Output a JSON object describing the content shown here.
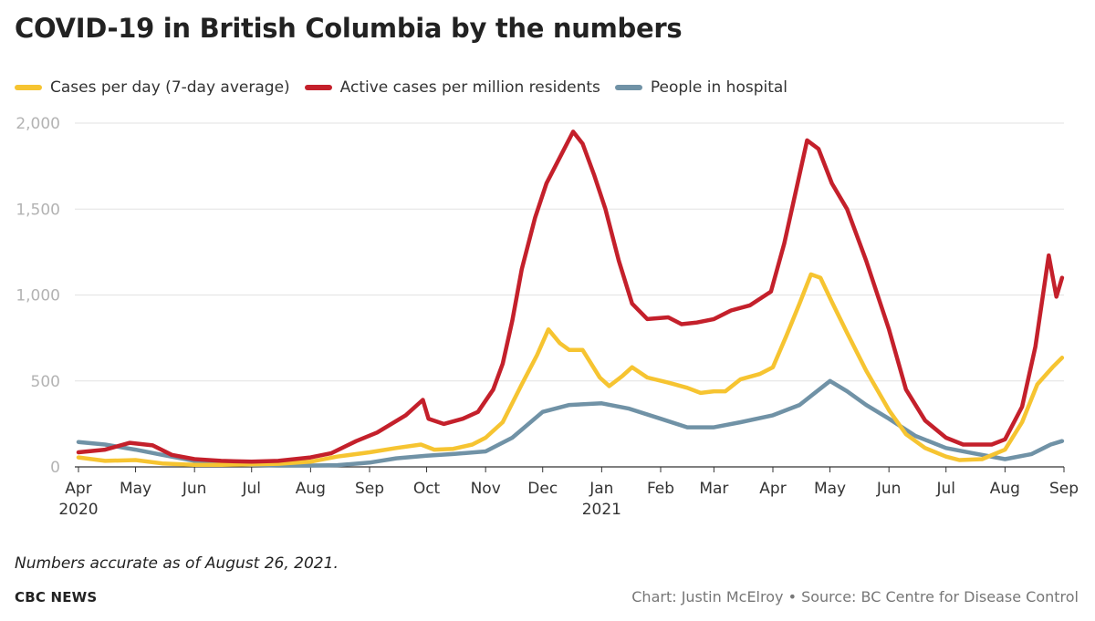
{
  "chart_data": {
    "type": "line",
    "title": "COVID-19 in British Columbia by the numbers",
    "note": "Numbers accurate as of August 26, 2021.",
    "brand": "CBC NEWS",
    "credit": "Chart: Justin McElroy • Source: BC Centre for Disease Control",
    "xlabel": "",
    "ylabel": "",
    "ylim": [
      0,
      2000
    ],
    "xlim": [
      "2020-04-01",
      "2021-09-01"
    ],
    "grid": true,
    "legend_position": "top",
    "y_ticks": [
      {
        "value": 0,
        "label": "0"
      },
      {
        "value": 500,
        "label": "500"
      },
      {
        "value": 1000,
        "label": "1,000"
      },
      {
        "value": 1500,
        "label": "1,500"
      },
      {
        "value": 2000,
        "label": "2,000"
      }
    ],
    "x_ticks": [
      {
        "date": "2020-04-01",
        "label": "Apr",
        "year": "2020"
      },
      {
        "date": "2020-05-01",
        "label": "May",
        "year": ""
      },
      {
        "date": "2020-06-01",
        "label": "Jun",
        "year": ""
      },
      {
        "date": "2020-07-01",
        "label": "Jul",
        "year": ""
      },
      {
        "date": "2020-08-01",
        "label": "Aug",
        "year": ""
      },
      {
        "date": "2020-09-01",
        "label": "Sep",
        "year": ""
      },
      {
        "date": "2020-10-01",
        "label": "Oct",
        "year": ""
      },
      {
        "date": "2020-11-01",
        "label": "Nov",
        "year": ""
      },
      {
        "date": "2020-12-01",
        "label": "Dec",
        "year": ""
      },
      {
        "date": "2021-01-01",
        "label": "Jan",
        "year": "2021"
      },
      {
        "date": "2021-02-01",
        "label": "Feb",
        "year": ""
      },
      {
        "date": "2021-03-01",
        "label": "Mar",
        "year": ""
      },
      {
        "date": "2021-04-01",
        "label": "Apr",
        "year": ""
      },
      {
        "date": "2021-05-01",
        "label": "May",
        "year": ""
      },
      {
        "date": "2021-06-01",
        "label": "Jun",
        "year": ""
      },
      {
        "date": "2021-07-01",
        "label": "Jul",
        "year": ""
      },
      {
        "date": "2021-08-01",
        "label": "Aug",
        "year": ""
      },
      {
        "date": "2021-09-01",
        "label": "Sep",
        "year": ""
      }
    ],
    "series": [
      {
        "name": "Cases per day (7-day average)",
        "color": "#f6c431",
        "points": [
          [
            "2020-04-01",
            55
          ],
          [
            "2020-04-15",
            35
          ],
          [
            "2020-05-01",
            40
          ],
          [
            "2020-05-15",
            20
          ],
          [
            "2020-06-01",
            12
          ],
          [
            "2020-06-15",
            12
          ],
          [
            "2020-07-01",
            15
          ],
          [
            "2020-07-15",
            18
          ],
          [
            "2020-08-01",
            30
          ],
          [
            "2020-08-15",
            60
          ],
          [
            "2020-09-01",
            85
          ],
          [
            "2020-09-15",
            110
          ],
          [
            "2020-09-28",
            130
          ],
          [
            "2020-10-05",
            100
          ],
          [
            "2020-10-15",
            105
          ],
          [
            "2020-10-25",
            130
          ],
          [
            "2020-11-01",
            170
          ],
          [
            "2020-11-10",
            260
          ],
          [
            "2020-11-20",
            480
          ],
          [
            "2020-11-28",
            650
          ],
          [
            "2020-12-04",
            800
          ],
          [
            "2020-12-10",
            720
          ],
          [
            "2020-12-15",
            680
          ],
          [
            "2020-12-22",
            680
          ],
          [
            "2020-12-31",
            520
          ],
          [
            "2021-01-05",
            470
          ],
          [
            "2021-01-12",
            530
          ],
          [
            "2021-01-17",
            580
          ],
          [
            "2021-01-25",
            520
          ],
          [
            "2021-02-05",
            490
          ],
          [
            "2021-02-15",
            460
          ],
          [
            "2021-02-22",
            430
          ],
          [
            "2021-03-01",
            440
          ],
          [
            "2021-03-07",
            440
          ],
          [
            "2021-03-15",
            510
          ],
          [
            "2021-03-25",
            540
          ],
          [
            "2021-04-01",
            580
          ],
          [
            "2021-04-08",
            760
          ],
          [
            "2021-04-15",
            950
          ],
          [
            "2021-04-21",
            1120
          ],
          [
            "2021-04-26",
            1100
          ],
          [
            "2021-05-02",
            960
          ],
          [
            "2021-05-10",
            780
          ],
          [
            "2021-05-20",
            560
          ],
          [
            "2021-06-01",
            330
          ],
          [
            "2021-06-10",
            190
          ],
          [
            "2021-06-20",
            110
          ],
          [
            "2021-07-01",
            60
          ],
          [
            "2021-07-08",
            40
          ],
          [
            "2021-07-20",
            45
          ],
          [
            "2021-08-01",
            100
          ],
          [
            "2021-08-10",
            260
          ],
          [
            "2021-08-18",
            480
          ],
          [
            "2021-08-26",
            580
          ],
          [
            "2021-08-31",
            635
          ]
        ]
      },
      {
        "name": "Active cases per million residents",
        "color": "#c4202b",
        "points": [
          [
            "2020-04-01",
            85
          ],
          [
            "2020-04-15",
            100
          ],
          [
            "2020-04-28",
            140
          ],
          [
            "2020-05-10",
            125
          ],
          [
            "2020-05-20",
            70
          ],
          [
            "2020-06-01",
            45
          ],
          [
            "2020-06-15",
            35
          ],
          [
            "2020-07-01",
            30
          ],
          [
            "2020-07-15",
            35
          ],
          [
            "2020-08-01",
            55
          ],
          [
            "2020-08-12",
            80
          ],
          [
            "2020-08-25",
            150
          ],
          [
            "2020-09-05",
            200
          ],
          [
            "2020-09-20",
            300
          ],
          [
            "2020-09-29",
            390
          ],
          [
            "2020-10-02",
            280
          ],
          [
            "2020-10-10",
            250
          ],
          [
            "2020-10-20",
            280
          ],
          [
            "2020-10-28",
            320
          ],
          [
            "2020-11-05",
            450
          ],
          [
            "2020-11-10",
            600
          ],
          [
            "2020-11-15",
            850
          ],
          [
            "2020-11-20",
            1150
          ],
          [
            "2020-11-27",
            1450
          ],
          [
            "2020-12-03",
            1650
          ],
          [
            "2020-12-10",
            1800
          ],
          [
            "2020-12-17",
            1950
          ],
          [
            "2020-12-22",
            1880
          ],
          [
            "2020-12-28",
            1700
          ],
          [
            "2021-01-03",
            1500
          ],
          [
            "2021-01-10",
            1200
          ],
          [
            "2021-01-17",
            950
          ],
          [
            "2021-01-25",
            860
          ],
          [
            "2021-02-05",
            870
          ],
          [
            "2021-02-12",
            830
          ],
          [
            "2021-02-20",
            840
          ],
          [
            "2021-03-01",
            860
          ],
          [
            "2021-03-10",
            910
          ],
          [
            "2021-03-20",
            940
          ],
          [
            "2021-03-31",
            1020
          ],
          [
            "2021-04-07",
            1300
          ],
          [
            "2021-04-14",
            1650
          ],
          [
            "2021-04-19",
            1900
          ],
          [
            "2021-04-25",
            1850
          ],
          [
            "2021-05-02",
            1650
          ],
          [
            "2021-05-10",
            1500
          ],
          [
            "2021-05-20",
            1200
          ],
          [
            "2021-06-01",
            800
          ],
          [
            "2021-06-10",
            450
          ],
          [
            "2021-06-20",
            270
          ],
          [
            "2021-07-01",
            170
          ],
          [
            "2021-07-10",
            130
          ],
          [
            "2021-07-25",
            130
          ],
          [
            "2021-08-01",
            160
          ],
          [
            "2021-08-10",
            350
          ],
          [
            "2021-08-17",
            700
          ],
          [
            "2021-08-24",
            1230
          ],
          [
            "2021-08-28",
            990
          ],
          [
            "2021-08-31",
            1100
          ]
        ]
      },
      {
        "name": "People in hospital",
        "color": "#7092a6",
        "points": [
          [
            "2020-04-01",
            145
          ],
          [
            "2020-04-15",
            130
          ],
          [
            "2020-05-01",
            100
          ],
          [
            "2020-05-15",
            70
          ],
          [
            "2020-06-01",
            35
          ],
          [
            "2020-06-15",
            20
          ],
          [
            "2020-07-01",
            12
          ],
          [
            "2020-07-15",
            8
          ],
          [
            "2020-08-01",
            8
          ],
          [
            "2020-08-15",
            10
          ],
          [
            "2020-09-01",
            25
          ],
          [
            "2020-09-15",
            50
          ],
          [
            "2020-10-01",
            65
          ],
          [
            "2020-10-15",
            75
          ],
          [
            "2020-11-01",
            90
          ],
          [
            "2020-11-15",
            170
          ],
          [
            "2020-12-01",
            320
          ],
          [
            "2020-12-15",
            360
          ],
          [
            "2021-01-01",
            370
          ],
          [
            "2021-01-15",
            340
          ],
          [
            "2021-02-01",
            280
          ],
          [
            "2021-02-15",
            230
          ],
          [
            "2021-03-01",
            230
          ],
          [
            "2021-03-15",
            260
          ],
          [
            "2021-04-01",
            300
          ],
          [
            "2021-04-15",
            360
          ],
          [
            "2021-05-01",
            500
          ],
          [
            "2021-05-10",
            440
          ],
          [
            "2021-05-20",
            360
          ],
          [
            "2021-06-01",
            280
          ],
          [
            "2021-06-15",
            180
          ],
          [
            "2021-07-01",
            110
          ],
          [
            "2021-07-15",
            80
          ],
          [
            "2021-08-01",
            45
          ],
          [
            "2021-08-15",
            75
          ],
          [
            "2021-08-25",
            130
          ],
          [
            "2021-08-31",
            150
          ]
        ]
      }
    ]
  }
}
